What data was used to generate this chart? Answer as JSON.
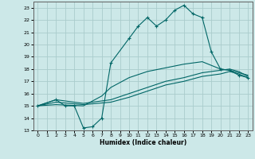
{
  "background_color": "#cce8e8",
  "grid_color": "#aacccc",
  "line_color": "#006666",
  "xlabel": "Humidex (Indice chaleur)",
  "xlim": [
    -0.5,
    23.5
  ],
  "ylim": [
    13,
    23.5
  ],
  "xticks": [
    0,
    1,
    2,
    3,
    4,
    5,
    6,
    7,
    8,
    9,
    10,
    11,
    12,
    13,
    14,
    15,
    16,
    17,
    18,
    19,
    20,
    21,
    22,
    23
  ],
  "yticks": [
    13,
    14,
    15,
    16,
    17,
    18,
    19,
    20,
    21,
    22,
    23
  ],
  "series1_x": [
    0,
    2,
    3,
    4,
    5,
    6,
    7,
    8,
    10,
    11,
    12,
    13,
    14,
    15,
    16,
    17,
    18,
    19,
    20,
    21,
    22,
    23
  ],
  "series1_y": [
    15,
    15.5,
    15.0,
    15.0,
    13.2,
    13.3,
    14.0,
    18.5,
    20.5,
    21.5,
    22.2,
    21.5,
    22.0,
    22.8,
    23.2,
    22.5,
    22.2,
    19.4,
    18.0,
    17.9,
    17.5,
    17.3
  ],
  "series2_x": [
    0,
    2,
    5,
    8,
    10,
    12,
    14,
    16,
    18,
    20,
    21,
    22,
    23
  ],
  "series2_y": [
    15,
    15.5,
    15.2,
    15.5,
    16.0,
    16.5,
    17.0,
    17.3,
    17.7,
    17.9,
    18.0,
    17.8,
    17.4
  ],
  "series3_x": [
    0,
    2,
    5,
    8,
    10,
    12,
    14,
    16,
    18,
    20,
    21,
    22,
    23
  ],
  "series3_y": [
    15,
    15.3,
    15.1,
    15.3,
    15.7,
    16.2,
    16.7,
    17.0,
    17.4,
    17.6,
    17.8,
    17.6,
    17.3
  ],
  "series4_x": [
    0,
    2,
    5,
    7,
    8,
    10,
    12,
    14,
    16,
    18,
    20,
    21,
    22,
    23
  ],
  "series4_y": [
    15,
    15.1,
    15.0,
    15.8,
    16.5,
    17.3,
    17.8,
    18.1,
    18.4,
    18.6,
    18.0,
    17.9,
    17.7,
    17.5
  ]
}
